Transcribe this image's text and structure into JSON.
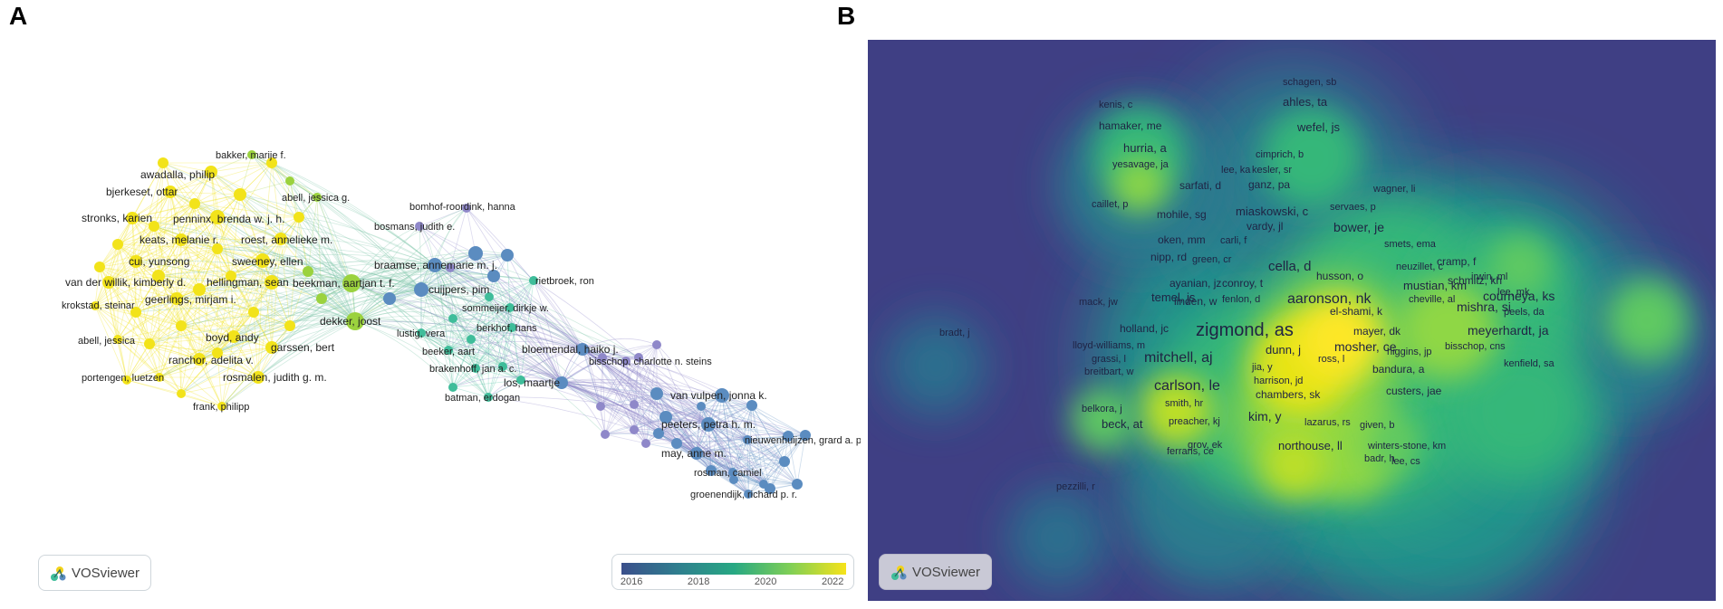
{
  "panels": {
    "a_label": "A",
    "b_label": "B"
  },
  "colors": {
    "yellow_cluster": "#f2e31a",
    "green_cluster": "#9bd23e",
    "teal_cluster": "#3fbd9a",
    "steel_cluster": "#5b8cc0",
    "purple_cluster": "#8f88c9",
    "density_bg": "#3f3f84"
  },
  "network_a": {
    "labels": [
      "bakker, marije f.",
      "awadalla, philip",
      "bjerkeset, ottar",
      "abell, jessica g.",
      "stronks, karien",
      "penninx, brenda w. j. h.",
      "keats, melanie r.",
      "roest, annelieke m.",
      "cui, yunsong",
      "sweeney, ellen",
      "hellingman, sean",
      "van der willik, kimberly d.",
      "geerlings, mirjam i.",
      "krokstad, steinar",
      "boyd, andy",
      "abell, jessica",
      "garssen, bert",
      "ranchor, adelita v.",
      "portengen, luetzen",
      "rosmalen, judith g. m.",
      "frank, philipp",
      "bomhof-roordink, hanna",
      "bosmans, judith e.",
      "braamse, annemarie m. j.",
      "beekman, aartjan t. f.",
      "cuijpers, pim",
      "rietbroek, ron",
      "dekker, joost",
      "sommeijer, dirkje w.",
      "berkhof, hans",
      "lustig, vera",
      "beeker, aart",
      "brakenhoff, jan a. c.",
      "batman, erdogan",
      "bloemendal, haiko j.",
      "bisschop, charlotte n. steins",
      "los, maartje",
      "van vulpen, jonna k.",
      "peeters, petra h. m.",
      "nieuwenhuijzen, grard a. p.",
      "may, anne m.",
      "rosman, camiel",
      "groenendijk, richard p. r."
    ],
    "vosviewer_label": "VOSviewer",
    "colorbar": {
      "ticks": [
        "2016",
        "2018",
        "2020",
        "2022"
      ],
      "range": [
        2015.7,
        2022.4
      ]
    }
  },
  "density_b": {
    "labels": [
      "schagen, sb",
      "ahles, ta",
      "kenis, c",
      "hamaker, me",
      "wefel, js",
      "hurria, a",
      "cimprich, b",
      "yesavage, ja",
      "lee, ka",
      "kesler, sr",
      "sarfati, d",
      "ganz, pa",
      "wagner, li",
      "caillet, p",
      "servaes, p",
      "mohile, sg",
      "miaskowski, c",
      "bower, je",
      "vardy, jl",
      "oken, mm",
      "carli, f",
      "smets, ema",
      "nipp, rd",
      "green, cr",
      "cella, d",
      "neuzillet, c",
      "cramp, f",
      "husson, o",
      "irwin, ml",
      "schmitz, kh",
      "ayanian, jz",
      "conroy, t",
      "mustian, km",
      "lee, mk",
      "temel, js",
      "courneya, ks",
      "mack, jw",
      "linden, w",
      "fenlon, d",
      "aaronson, nk",
      "cheville, al",
      "peels, da",
      "mishra, si",
      "el-shami, k",
      "bradt, j",
      "holland, jc",
      "zigmond, as",
      "mayer, dk",
      "meyerhardt, ja",
      "lloyd-williams, m",
      "mosher, ce",
      "bisschop, cns",
      "higgins, jp",
      "dunn, j",
      "mitchell, aj",
      "grassi, l",
      "ross, l",
      "kenfield, sa",
      "jia, y",
      "bandura, a",
      "breitbart, w",
      "harrison, jd",
      "carlson, le",
      "custers, jae",
      "chambers, sk",
      "smith, hr",
      "belkora, j",
      "kim, y",
      "lazarus, rs",
      "preacher, kj",
      "given, b",
      "beck, at",
      "grov, ek",
      "northouse, ll",
      "winters-stone, km",
      "ferrans, ce",
      "badr, h",
      "lee, cs",
      "pezzilli, r"
    ],
    "vosviewer_label": "VOSviewer"
  }
}
